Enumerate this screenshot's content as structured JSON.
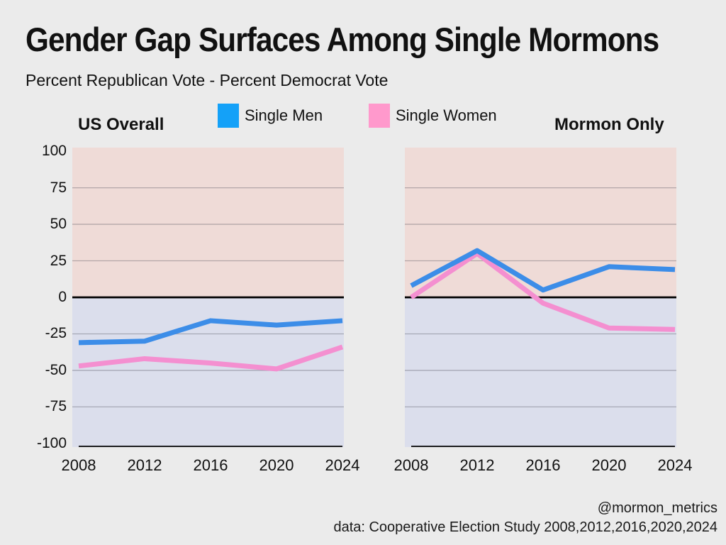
{
  "page": {
    "title": "Gender Gap Surfaces Among Single Mormons",
    "subtitle": "Percent Republican Vote - Percent Democrat Vote",
    "background": "#ebebeb"
  },
  "legend": {
    "items": [
      {
        "label": "Single Men",
        "swatch_color": "#14a1f8"
      },
      {
        "label": "Single Women",
        "swatch_color": "#ff99cc"
      }
    ]
  },
  "footer": {
    "handle": "@mormon_metrics",
    "source": "data: Cooperative Election Study 2008,2012,2016,2020,2024"
  },
  "colors": {
    "republican_region": "#efdbd7",
    "democrat_region": "#dbdeec",
    "men_line": "#3c8de8",
    "women_line": "#f48fd0",
    "zero_line": "#000000",
    "axis_line": "#000000",
    "gridline": "rgba(68,68,80,0.35)",
    "text": "#111111"
  },
  "chart_data": [
    {
      "type": "line",
      "title": "US Overall",
      "x": [
        "2008",
        "2012",
        "2016",
        "2020",
        "2024"
      ],
      "series": [
        {
          "name": "Single Men",
          "color_key": "men_line",
          "values": [
            -31,
            -30,
            -16,
            -19,
            -16
          ]
        },
        {
          "name": "Single Women",
          "color_key": "women_line",
          "values": [
            -47,
            -42,
            -45,
            -49,
            -34
          ]
        }
      ],
      "ylim": [
        -100,
        100
      ],
      "y_ticks": [
        100,
        75,
        50,
        25,
        0,
        -25,
        -50,
        -75,
        -100
      ],
      "gridline_ticks": [
        75,
        50,
        25,
        -25,
        -50,
        -75
      ],
      "legend_position": "top-center",
      "grid": true,
      "show_y_labels": true
    },
    {
      "type": "line",
      "title": "Mormon Only",
      "x": [
        "2008",
        "2012",
        "2016",
        "2020",
        "2024"
      ],
      "series": [
        {
          "name": "Single Men",
          "color_key": "men_line",
          "values": [
            8,
            32,
            5,
            21,
            19
          ]
        },
        {
          "name": "Single Women",
          "color_key": "women_line",
          "values": [
            0,
            30,
            -4,
            -21,
            -22
          ]
        }
      ],
      "ylim": [
        -100,
        100
      ],
      "y_ticks": [
        100,
        75,
        50,
        25,
        0,
        -25,
        -50,
        -75,
        -100
      ],
      "gridline_ticks": [
        75,
        50,
        25,
        -25,
        -50,
        -75
      ],
      "grid": true,
      "show_y_labels": false
    }
  ]
}
